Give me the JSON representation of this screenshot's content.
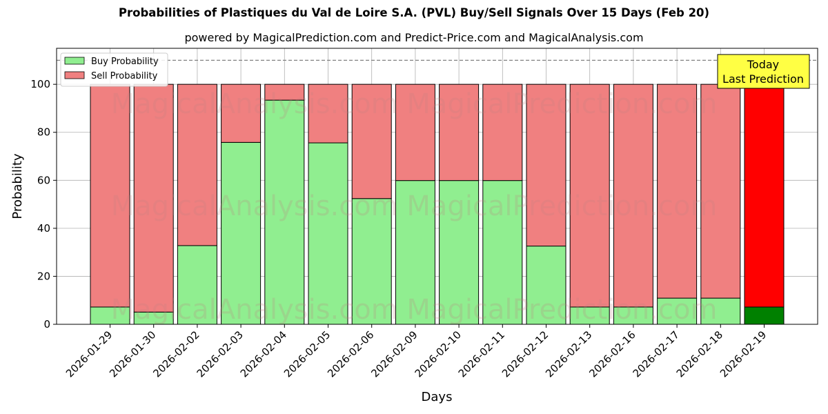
{
  "chart_data": {
    "type": "bar",
    "stacked": true,
    "title": "Probabilities of Plastiques du Val de Loire S.A. (PVL) Buy/Sell Signals Over 15 Days (Feb 20)",
    "subtitle": "powered by MagicalPrediction.com and Predict-Price.com and MagicalAnalysis.com",
    "xlabel": "Days",
    "ylabel": "Probability",
    "ylim": [
      0,
      115
    ],
    "yticks": [
      0,
      20,
      40,
      60,
      80,
      100
    ],
    "grid": true,
    "legend_position": "top-left",
    "reference_line": 110,
    "categories": [
      "2026-01-29",
      "2026-01-30",
      "2026-02-02",
      "2026-02-03",
      "2026-02-04",
      "2026-02-05",
      "2026-02-06",
      "2026-02-09",
      "2026-02-10",
      "2026-02-11",
      "2026-02-12",
      "2026-02-13",
      "2026-02-16",
      "2026-02-17",
      "2026-02-18",
      "2026-02-19"
    ],
    "series": [
      {
        "name": "Buy Probability",
        "color": "#90ee90",
        "highlight_color": "#008000",
        "values": [
          7.2,
          5.1,
          32.8,
          75.8,
          93.4,
          75.6,
          52.4,
          59.9,
          59.9,
          59.9,
          32.6,
          7.2,
          7.2,
          10.9,
          10.9,
          7.2
        ]
      },
      {
        "name": "Sell Probability",
        "color": "#f08080",
        "highlight_color": "#ff0000",
        "values": [
          92.8,
          94.9,
          67.2,
          24.2,
          6.6,
          24.4,
          47.6,
          40.1,
          40.1,
          40.1,
          67.4,
          92.8,
          92.8,
          89.1,
          89.1,
          92.8
        ]
      }
    ],
    "highlight_index": 15,
    "annotation": {
      "line1": "Today",
      "line2": "Last Prediction",
      "color": "#ffff44"
    },
    "watermark": "MagicalAnalysis.com   MagicalPrediction.com"
  }
}
